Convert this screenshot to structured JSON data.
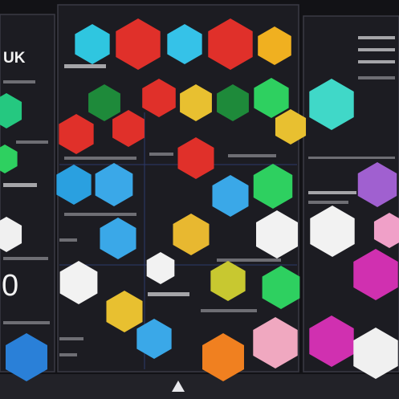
{
  "header": {
    "title": "UK"
  },
  "stat": {
    "value": "0"
  }
}
